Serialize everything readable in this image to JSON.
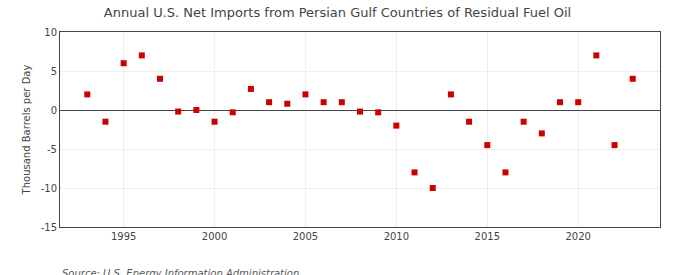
{
  "chart_data": {
    "type": "scatter",
    "title": "Annual U.S. Net Imports from Persian Gulf Countries of Residual Fuel Oil",
    "ylabel": "Thousand Barrels per Day",
    "annotation": "Source: U.S. Energy Information Administration",
    "x": [
      1993,
      1994,
      1995,
      1996,
      1997,
      1998,
      1999,
      2000,
      2001,
      2002,
      2003,
      2004,
      2005,
      2006,
      2007,
      2008,
      2009,
      2010,
      2011,
      2012,
      2013,
      2014,
      2015,
      2016,
      2017,
      2018,
      2019,
      2020,
      2021,
      2022,
      2023
    ],
    "values": [
      2.0,
      -1.5,
      6.0,
      7.0,
      4.0,
      -0.2,
      0.0,
      -1.5,
      -0.3,
      2.7,
      1.0,
      0.8,
      2.0,
      1.0,
      1.0,
      -0.2,
      -0.3,
      -2.0,
      -8.0,
      -10.0,
      2.0,
      -1.5,
      -4.5,
      -8.0,
      -1.5,
      -3.0,
      1.0,
      1.0,
      7.0,
      -4.5,
      4.0
    ],
    "color": "#cc0000",
    "marker": "square",
    "xlim": [
      1991.5,
      2024.5
    ],
    "xticks": [
      1995,
      2000,
      2005,
      2010,
      2015,
      2020
    ],
    "ylim": [
      -15,
      10
    ],
    "yticks": [
      -15,
      -10,
      -5,
      0,
      5,
      10
    ],
    "grid": true
  }
}
